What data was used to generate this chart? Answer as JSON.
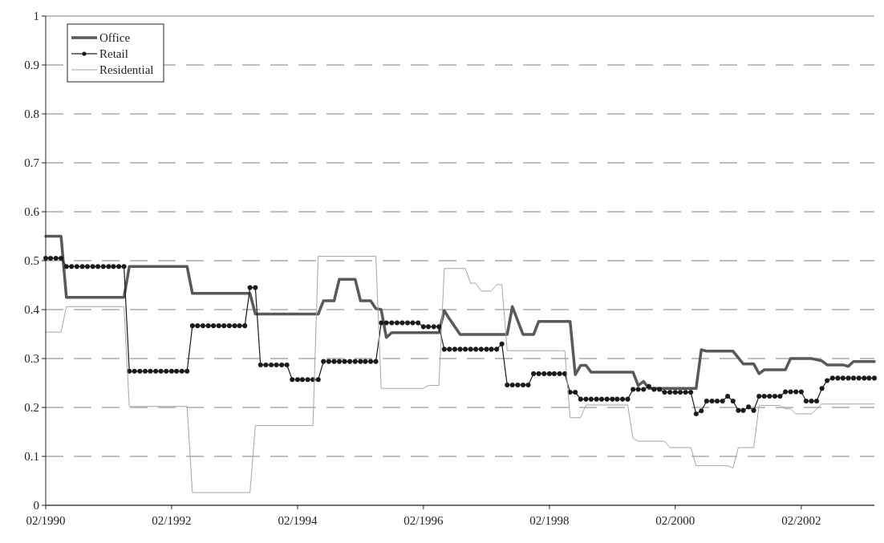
{
  "chart_data": {
    "type": "line",
    "x": [
      "1990-02",
      "1990-03",
      "1990-04",
      "1990-05",
      "1990-06",
      "1990-07",
      "1990-08",
      "1990-09",
      "1990-10",
      "1990-11",
      "1990-12",
      "1991-01",
      "1991-02",
      "1991-03",
      "1991-04",
      "1991-05",
      "1991-06",
      "1991-07",
      "1991-08",
      "1991-09",
      "1991-10",
      "1991-11",
      "1991-12",
      "1992-01",
      "1992-02",
      "1992-03",
      "1992-04",
      "1992-05",
      "1992-06",
      "1992-07",
      "1992-08",
      "1992-09",
      "1992-10",
      "1992-11",
      "1992-12",
      "1993-01",
      "1993-02",
      "1993-03",
      "1993-04",
      "1993-05",
      "1993-06",
      "1993-07",
      "1993-08",
      "1993-09",
      "1993-10",
      "1993-11",
      "1993-12",
      "1994-01",
      "1994-02",
      "1994-03",
      "1994-04",
      "1994-05",
      "1994-06",
      "1994-07",
      "1994-08",
      "1994-09",
      "1994-10",
      "1994-11",
      "1994-12",
      "1995-01",
      "1995-02",
      "1995-03",
      "1995-04",
      "1995-05",
      "1995-06",
      "1995-07",
      "1995-08",
      "1995-09",
      "1995-10",
      "1995-11",
      "1995-12",
      "1996-01",
      "1996-02",
      "1996-03",
      "1996-04",
      "1996-05",
      "1996-06",
      "1996-07",
      "1996-08",
      "1996-09",
      "1996-10",
      "1996-11",
      "1996-12",
      "1997-01",
      "1997-02",
      "1997-03",
      "1997-04",
      "1997-05",
      "1997-06",
      "1997-07",
      "1997-08",
      "1997-09",
      "1997-10",
      "1997-11",
      "1997-12",
      "1998-01",
      "1998-02",
      "1998-03",
      "1998-04",
      "1998-05",
      "1998-06",
      "1998-07",
      "1998-08",
      "1998-09",
      "1998-10",
      "1998-11",
      "1998-12",
      "1999-01",
      "1999-02",
      "1999-03",
      "1999-04",
      "1999-05",
      "1999-06",
      "1999-07",
      "1999-08",
      "1999-09",
      "1999-10",
      "1999-11",
      "1999-12",
      "2000-01",
      "2000-02",
      "2000-03",
      "2000-04",
      "2000-05",
      "2000-06",
      "2000-07",
      "2000-08",
      "2000-09",
      "2000-10",
      "2000-11",
      "2000-12",
      "2001-01",
      "2001-02",
      "2001-03",
      "2001-04",
      "2001-05",
      "2001-06",
      "2001-07",
      "2001-08",
      "2001-09",
      "2001-10",
      "2001-11",
      "2001-12",
      "2002-01",
      "2002-02",
      "2002-03",
      "2002-04",
      "2002-05",
      "2002-06",
      "2002-07",
      "2002-08",
      "2002-09",
      "2002-10",
      "2002-11",
      "2002-12",
      "2003-01",
      "2003-02",
      "2003-03",
      "2003-04"
    ],
    "series": [
      {
        "name": "Office",
        "color": "#595959",
        "x": [
          "1990-02",
          "1990-05",
          "1990-06",
          "1991-05",
          "1991-06",
          "1992-05",
          "1992-06",
          "1993-05",
          "1993-06",
          "1994-06",
          "1994-07",
          "1994-09",
          "1994-10",
          "1995-01",
          "1995-02",
          "1995-04",
          "1995-05",
          "1995-06",
          "1995-07",
          "1995-08",
          "1996-05",
          "1996-06",
          "1996-07",
          "1996-09",
          "1997-06",
          "1997-07",
          "1997-09",
          "1997-11",
          "1997-12",
          "1998-06",
          "1998-07",
          "1998-08",
          "1998-09",
          "1998-10",
          "1999-06",
          "1999-07",
          "1999-08",
          "1999-09",
          "2000-06",
          "2000-07",
          "2000-08",
          "2001-01",
          "2001-03",
          "2001-05",
          "2001-06",
          "2001-07",
          "2001-11",
          "2001-12",
          "2002-04",
          "2002-06",
          "2002-07",
          "2002-10",
          "2002-11",
          "2002-12",
          "2003-04"
        ],
        "values": [
          0.55,
          0.55,
          0.425,
          0.425,
          0.488,
          0.488,
          0.433,
          0.433,
          0.391,
          0.391,
          0.418,
          0.418,
          0.462,
          0.462,
          0.418,
          0.418,
          0.402,
          0.4,
          0.343,
          0.353,
          0.353,
          0.398,
          0.381,
          0.349,
          0.349,
          0.406,
          0.349,
          0.349,
          0.376,
          0.376,
          0.267,
          0.286,
          0.286,
          0.272,
          0.272,
          0.245,
          0.253,
          0.239,
          0.239,
          0.318,
          0.315,
          0.315,
          0.289,
          0.289,
          0.269,
          0.277,
          0.277,
          0.3,
          0.3,
          0.295,
          0.287,
          0.287,
          0.284,
          0.294,
          0.294
        ]
      },
      {
        "name": "Retail",
        "color": "#1a1a1a",
        "marker": "circle",
        "values": [
          0.505,
          0.505,
          0.505,
          0.505,
          0.488,
          0.488,
          0.488,
          0.488,
          0.488,
          0.488,
          0.488,
          0.488,
          0.488,
          0.488,
          0.488,
          0.488,
          0.274,
          0.274,
          0.274,
          0.274,
          0.274,
          0.274,
          0.274,
          0.274,
          0.274,
          0.274,
          0.274,
          0.274,
          0.367,
          0.367,
          0.367,
          0.367,
          0.367,
          0.367,
          0.367,
          0.367,
          0.367,
          0.367,
          0.367,
          0.445,
          0.445,
          0.287,
          0.287,
          0.287,
          0.287,
          0.287,
          0.287,
          0.257,
          0.257,
          0.257,
          0.257,
          0.257,
          0.257,
          0.294,
          0.294,
          0.294,
          0.294,
          0.294,
          0.294,
          0.294,
          0.294,
          0.294,
          0.294,
          0.294,
          0.373,
          0.373,
          0.373,
          0.373,
          0.373,
          0.373,
          0.373,
          0.373,
          0.365,
          0.365,
          0.365,
          0.365,
          0.319,
          0.319,
          0.319,
          0.319,
          0.319,
          0.319,
          0.319,
          0.319,
          0.319,
          0.319,
          0.319,
          0.33,
          0.246,
          0.246,
          0.246,
          0.246,
          0.246,
          0.269,
          0.269,
          0.269,
          0.269,
          0.269,
          0.269,
          0.269,
          0.231,
          0.231,
          0.217,
          0.217,
          0.217,
          0.217,
          0.217,
          0.217,
          0.217,
          0.217,
          0.217,
          0.217,
          0.237,
          0.237,
          0.237,
          0.243,
          0.237,
          0.237,
          0.231,
          0.231,
          0.231,
          0.231,
          0.231,
          0.231,
          0.187,
          0.193,
          0.213,
          0.213,
          0.213,
          0.213,
          0.223,
          0.213,
          0.194,
          0.194,
          0.201,
          0.194,
          0.223,
          0.223,
          0.223,
          0.223,
          0.223,
          0.232,
          0.232,
          0.232,
          0.232,
          0.213,
          0.213,
          0.213,
          0.239,
          0.255,
          0.26,
          0.26,
          0.26,
          0.26,
          0.26,
          0.26,
          0.26,
          0.26,
          0.26
        ]
      },
      {
        "name": "Residential",
        "color": "#a6a6a6",
        "x": [
          "1990-02",
          "1990-05",
          "1990-06",
          "1991-05",
          "1991-06",
          "1992-05",
          "1992-06",
          "1993-05",
          "1993-06",
          "1994-05",
          "1994-06",
          "1995-05",
          "1995-06",
          "1996-02",
          "1996-03",
          "1996-05",
          "1996-06",
          "1996-10",
          "1996-11",
          "1996-12",
          "1997-01",
          "1997-03",
          "1997-04",
          "1997-05",
          "1997-06",
          "1998-05",
          "1998-06",
          "1998-08",
          "1998-09",
          "1999-05",
          "1999-06",
          "1999-07",
          "1999-12",
          "2000-01",
          "2000-05",
          "2000-06",
          "2000-12",
          "2001-01",
          "2001-02",
          "2001-05",
          "2001-06",
          "2001-10",
          "2001-11",
          "2001-12",
          "2002-01",
          "2002-04",
          "2002-06",
          "2003-04"
        ],
        "values": [
          0.354,
          0.354,
          0.406,
          0.406,
          0.202,
          0.202,
          0.026,
          0.026,
          0.163,
          0.163,
          0.509,
          0.509,
          0.239,
          0.239,
          0.245,
          0.245,
          0.484,
          0.484,
          0.454,
          0.454,
          0.438,
          0.438,
          0.451,
          0.451,
          0.316,
          0.316,
          0.179,
          0.179,
          0.205,
          0.205,
          0.137,
          0.131,
          0.131,
          0.118,
          0.118,
          0.081,
          0.081,
          0.076,
          0.118,
          0.118,
          0.204,
          0.204,
          0.197,
          0.197,
          0.187,
          0.187,
          0.207,
          0.207
        ]
      }
    ],
    "xlim": [
      "1990-02",
      "2003-04"
    ],
    "xticks": [
      {
        "value": "1990-02",
        "label": "02/1990"
      },
      {
        "value": "1992-02",
        "label": "02/1992"
      },
      {
        "value": "1994-02",
        "label": "02/1994"
      },
      {
        "value": "1996-02",
        "label": "02/1996"
      },
      {
        "value": "1998-02",
        "label": "02/1998"
      },
      {
        "value": "2000-02",
        "label": "02/2000"
      },
      {
        "value": "2002-02",
        "label": "02/2002"
      }
    ],
    "ylim": [
      0,
      1
    ],
    "yticks": [
      0,
      0.1,
      0.2,
      0.3,
      0.4,
      0.5,
      0.6,
      0.7,
      0.8,
      0.9,
      1
    ],
    "grid": "y",
    "line_style": "solid",
    "legend": "top left"
  }
}
